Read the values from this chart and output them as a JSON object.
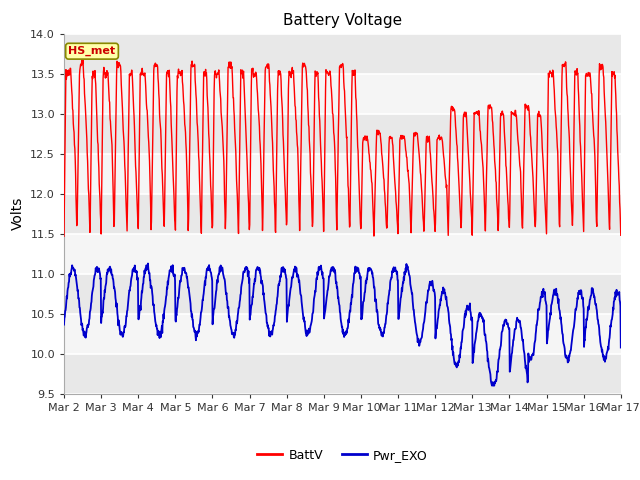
{
  "title": "Battery Voltage",
  "ylabel": "Volts",
  "ylim": [
    9.5,
    14.0
  ],
  "xlim": [
    0,
    15
  ],
  "xtick_labels": [
    "Mar 2",
    "Mar 3",
    "Mar 4",
    "Mar 5",
    "Mar 6",
    "Mar 7",
    "Mar 8",
    "Mar 9",
    "Mar 10",
    "Mar 11",
    "Mar 12",
    "Mar 13",
    "Mar 14",
    "Mar 15",
    "Mar 16",
    "Mar 17"
  ],
  "ytick_values": [
    9.5,
    10.0,
    10.5,
    11.0,
    11.5,
    12.0,
    12.5,
    13.0,
    13.5,
    14.0
  ],
  "batt_color": "#ff0000",
  "pwr_color": "#0000cc",
  "background_color": "#ffffff",
  "plot_bg_color": "#ffffff",
  "grid_color": "#cccccc",
  "legend_label_batt": "BattV",
  "legend_label_pwr": "Pwr_EXO",
  "watermark_text": "HS_met",
  "watermark_bg": "#ffffaa",
  "watermark_border": "#888800",
  "watermark_text_color": "#cc0000",
  "title_fontsize": 11,
  "axis_label_fontsize": 10,
  "tick_fontsize": 8,
  "legend_fontsize": 9
}
